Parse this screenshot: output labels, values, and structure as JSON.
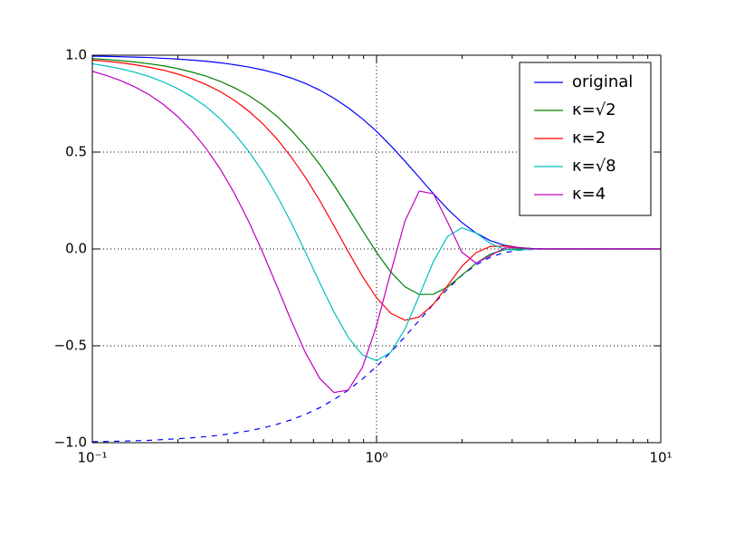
{
  "chart_data": {
    "type": "line",
    "x": [
      0.1,
      0.1122,
      0.1259,
      0.1413,
      0.1585,
      0.1778,
      0.1995,
      0.2239,
      0.2512,
      0.2818,
      0.3162,
      0.3548,
      0.3981,
      0.4467,
      0.5012,
      0.5623,
      0.631,
      0.7079,
      0.7943,
      0.8913,
      1,
      1.122,
      1.259,
      1.413,
      1.585,
      1.778,
      1.995,
      2.239,
      2.512,
      2.818,
      3.162,
      3.548,
      3.981,
      4.467,
      5.012,
      5.623,
      6.31,
      7.079,
      7.943,
      8.913,
      10
    ],
    "series": [
      {
        "color": "#0000ff",
        "linestyle": "dashed",
        "values": [
          -0.995,
          -0.994,
          -0.992,
          -0.99,
          -0.988,
          -0.984,
          -0.98,
          -0.975,
          -0.969,
          -0.961,
          -0.951,
          -0.939,
          -0.924,
          -0.905,
          -0.882,
          -0.854,
          -0.82,
          -0.778,
          -0.729,
          -0.672,
          -0.607,
          -0.533,
          -0.453,
          -0.369,
          -0.285,
          -0.206,
          -0.137,
          -0.082,
          -0.043,
          -0.019,
          -0.007,
          -0.002,
          0,
          0,
          0,
          0,
          0,
          0,
          0,
          0,
          0
        ]
      },
      {
        "name": "original",
        "color": "#0000ff",
        "values": [
          0.995,
          0.994,
          0.992,
          0.99,
          0.988,
          0.984,
          0.98,
          0.975,
          0.969,
          0.961,
          0.951,
          0.939,
          0.924,
          0.905,
          0.882,
          0.854,
          0.82,
          0.778,
          0.729,
          0.672,
          0.607,
          0.533,
          0.453,
          0.369,
          0.285,
          0.206,
          0.137,
          0.082,
          0.043,
          0.019,
          0.007,
          0.002,
          0,
          0,
          0,
          0,
          0,
          0,
          0,
          0,
          0
        ]
      },
      {
        "name": "κ=√2",
        "color": "#008000",
        "values": [
          0.982,
          0.978,
          0.972,
          0.965,
          0.956,
          0.945,
          0.931,
          0.913,
          0.892,
          0.865,
          0.832,
          0.792,
          0.743,
          0.684,
          0.613,
          0.531,
          0.436,
          0.33,
          0.215,
          0.097,
          -0.018,
          -0.119,
          -0.195,
          -0.235,
          -0.234,
          -0.197,
          -0.136,
          -0.074,
          -0.027,
          -0.004,
          0.001,
          0.001,
          0,
          0,
          0,
          0,
          0,
          0,
          0,
          0,
          0
        ]
      },
      {
        "name": "κ=2",
        "color": "#ff0000",
        "values": [
          0.975,
          0.969,
          0.961,
          0.951,
          0.938,
          0.923,
          0.903,
          0.879,
          0.849,
          0.812,
          0.767,
          0.712,
          0.646,
          0.567,
          0.474,
          0.369,
          0.25,
          0.12,
          -0.013,
          -0.141,
          -0.252,
          -0.332,
          -0.368,
          -0.351,
          -0.285,
          -0.189,
          -0.09,
          -0.019,
          0.013,
          0.015,
          0.007,
          0.001,
          0,
          0,
          0,
          0,
          0,
          0,
          0,
          0,
          0
        ]
      },
      {
        "name": "κ=√8",
        "color": "#00bfbf",
        "values": [
          0.956,
          0.944,
          0.93,
          0.912,
          0.89,
          0.862,
          0.828,
          0.786,
          0.735,
          0.672,
          0.595,
          0.504,
          0.398,
          0.274,
          0.135,
          -0.017,
          -0.174,
          -0.325,
          -0.456,
          -0.547,
          -0.577,
          -0.533,
          -0.413,
          -0.242,
          -0.065,
          0.064,
          0.109,
          0.082,
          0.029,
          -0.002,
          -0.006,
          -0.001,
          0,
          0,
          0,
          0,
          0,
          0,
          0,
          0,
          0
        ]
      },
      {
        "name": "κ=4",
        "color": "#bf00bf",
        "values": [
          0.917,
          0.895,
          0.869,
          0.836,
          0.796,
          0.746,
          0.684,
          0.609,
          0.519,
          0.413,
          0.287,
          0.142,
          -0.02,
          -0.194,
          -0.371,
          -0.536,
          -0.668,
          -0.741,
          -0.729,
          -0.612,
          -0.396,
          -0.12,
          0.144,
          0.299,
          0.285,
          0.139,
          -0.017,
          -0.073,
          -0.035,
          0.005,
          0.007,
          0,
          0,
          0,
          0,
          0,
          0,
          0,
          0,
          0,
          0
        ]
      }
    ],
    "xscale": "log",
    "xlim": [
      0.1,
      10
    ],
    "xticks": [
      {
        "value": 0.1,
        "label": "10⁻¹"
      },
      {
        "value": 1,
        "label": "10⁰"
      },
      {
        "value": 10,
        "label": "10¹"
      }
    ],
    "xticks_minor": [
      0.2,
      0.3,
      0.4,
      0.5,
      0.6,
      0.7,
      0.8,
      0.9,
      2,
      3,
      4,
      5,
      6,
      7,
      8,
      9
    ],
    "ylim": [
      -1,
      1
    ],
    "yticks": [
      {
        "value": -1,
        "label": "−1.0"
      },
      {
        "value": -0.5,
        "label": "−0.5"
      },
      {
        "value": 0,
        "label": "0.0"
      },
      0.5,
      {
        "value": 1,
        "label": "1.0"
      }
    ],
    "grid": true,
    "legend": "upper right"
  }
}
